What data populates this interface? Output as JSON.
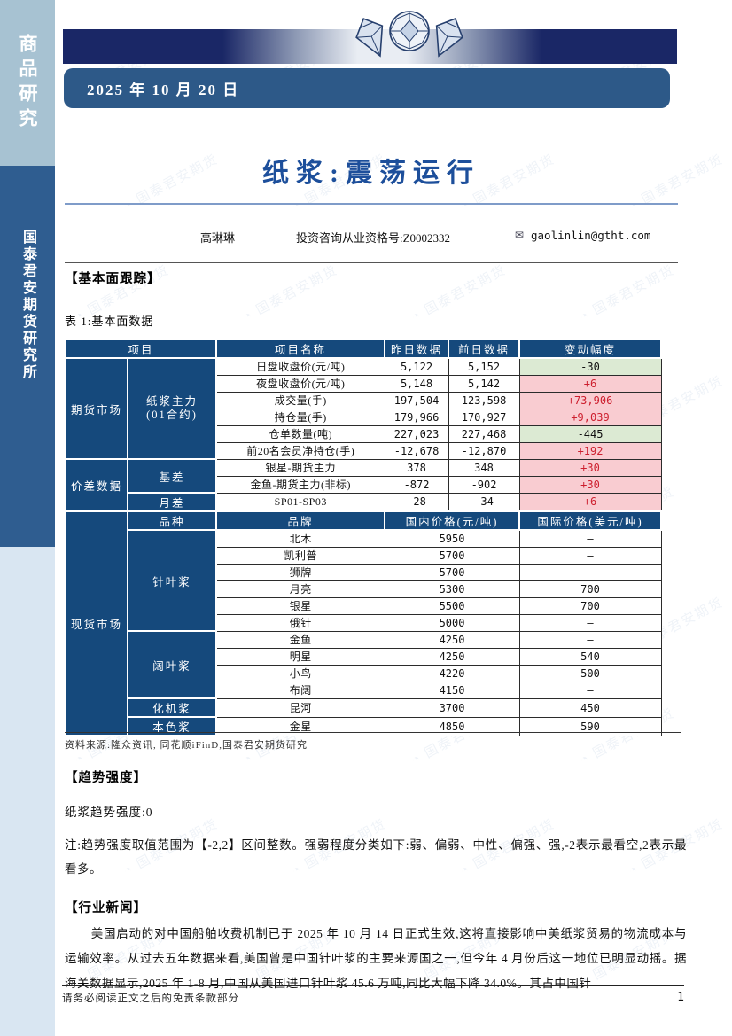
{
  "page": {
    "date": "2025 年 10 月 20 日",
    "page_number": "1",
    "footer_note": "请务必阅读正文之后的免责条款部分"
  },
  "sidebar": {
    "category_label": "商品研究",
    "institute_label": "国泰君安期货研究所"
  },
  "report": {
    "title": "纸浆:震荡运行",
    "author": "高琳琳",
    "qualification": "投资咨询从业资格号:Z0002332",
    "email": "gaolinlin@gtht.com",
    "email_icon": "✉"
  },
  "sections": {
    "fundamental_heading": "【基本面跟踪】",
    "trend_heading": "【趋势强度】",
    "news_heading": "【行业新闻】"
  },
  "table": {
    "caption": "表 1:基本面数据",
    "header": {
      "item": "项目",
      "item_name": "项目名称",
      "yesterday": "昨日数据",
      "prev_day": "前日数据",
      "change": "变动幅度"
    },
    "futures_group": {
      "label": "期货市场",
      "sub1": "纸浆主力",
      "sub2": "(01合约)"
    },
    "futures_rows": [
      {
        "name": "日盘收盘价(元/吨)",
        "yesterday": "5,122",
        "prev": "5,152",
        "change": "-30"
      },
      {
        "name": "夜盘收盘价(元/吨)",
        "yesterday": "5,148",
        "prev": "5,142",
        "change": "+6"
      },
      {
        "name": "成交量(手)",
        "yesterday": "197,504",
        "prev": "123,598",
        "change": "+73,906"
      },
      {
        "name": "持仓量(手)",
        "yesterday": "179,966",
        "prev": "170,927",
        "change": "+9,039"
      },
      {
        "name": "仓单数量(吨)",
        "yesterday": "227,023",
        "prev": "227,468",
        "change": "-445"
      },
      {
        "name": "前20名会员净持仓(手)",
        "yesterday": "-12,678",
        "prev": "-12,870",
        "change": "+192"
      }
    ],
    "spread_group": {
      "label": "价差数据",
      "basis_label": "基差",
      "month_label": "月差"
    },
    "spread_rows": [
      {
        "name": "银星-期货主力",
        "yesterday": "378",
        "prev": "348",
        "change": "+30"
      },
      {
        "name": "金鱼-期货主力(非标)",
        "yesterday": "-872",
        "prev": "-902",
        "change": "+30"
      },
      {
        "name": "SP01-SP03",
        "yesterday": "-28",
        "prev": "-34",
        "change": "+6"
      }
    ],
    "spot_group": {
      "label": "现货市场",
      "variety": "品种",
      "brand": "品牌",
      "domestic": "国内价格(元/吨)",
      "international": "国际价格(美元/吨)",
      "softwood_label": "针叶浆",
      "hardwood_label": "阔叶浆",
      "bctmp_label": "化机浆",
      "unbleached_label": "本色浆"
    },
    "spot_rows": [
      {
        "brand": "北木",
        "domestic": "5950",
        "intl": "–"
      },
      {
        "brand": "凯利普",
        "domestic": "5700",
        "intl": "–"
      },
      {
        "brand": "狮牌",
        "domestic": "5700",
        "intl": "–"
      },
      {
        "brand": "月亮",
        "domestic": "5300",
        "intl": "700"
      },
      {
        "brand": "银星",
        "domestic": "5500",
        "intl": "700"
      },
      {
        "brand": "俄针",
        "domestic": "5000",
        "intl": "–"
      },
      {
        "brand": "金鱼",
        "domestic": "4250",
        "intl": "–"
      },
      {
        "brand": "明星",
        "domestic": "4250",
        "intl": "540"
      },
      {
        "brand": "小鸟",
        "domestic": "4220",
        "intl": "500"
      },
      {
        "brand": "布阔",
        "domestic": "4150",
        "intl": "–"
      },
      {
        "brand": "昆河",
        "domestic": "3700",
        "intl": "450"
      },
      {
        "brand": "金星",
        "domestic": "4850",
        "intl": "590"
      }
    ],
    "source": "资料来源:隆众资讯, 同花顺iFinD,国泰君安期货研究"
  },
  "trend": {
    "value_line": "纸浆趋势强度:0",
    "note": "注:趋势强度取值范围为【-2,2】区间整数。强弱程度分类如下:弱、偏弱、中性、偏强、强,-2表示最看空,2表示最看多。"
  },
  "news": {
    "paragraph": "美国启动的对中国船舶收费机制已于 2025 年 10 月 14 日正式生效,这将直接影响中美纸浆贸易的物流成本与运输效率。从过去五年数据来看,美国曾是中国针叶浆的主要来源国之一,但今年 4 月份后这一地位已明显动摇。据海关数据显示,2025 年 1-8 月,中国从美国进口针叶浆 45.6 万吨,同比大幅下降 34.0%。其占中国针"
  },
  "watermark": {
    "text": "国泰君安期货"
  },
  "colors": {
    "table_header_navy": "#15497c",
    "positive_bg": "#f9ccd1",
    "positive_text": "#cd1f2e",
    "negative_bg": "#dcead3",
    "date_bar_blue": "#2d5988",
    "title_blue": "#1d4f9b",
    "band_navy": "#1a2766",
    "sidebar_top": "#a7c2d2",
    "sidebar_mid": "#2f5d90",
    "sidebar_bottom": "#d9e6f2"
  }
}
